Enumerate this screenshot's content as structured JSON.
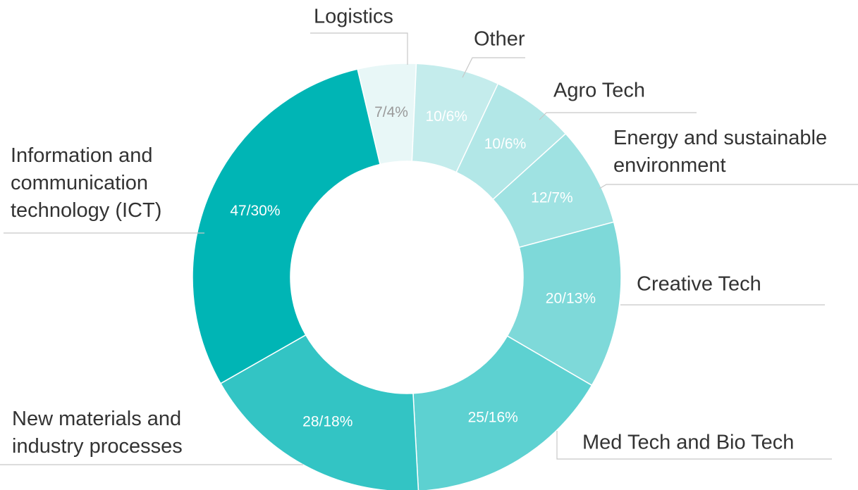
{
  "chart_data": {
    "type": "donut",
    "categories": [
      "Logistics",
      "Other",
      "Agro Tech",
      "Energy and sustainable environment",
      "Creative Tech",
      "Med Tech and Bio Tech",
      "New materials and industry processes",
      "Information and communication technology (ICT)"
    ],
    "values": [
      7,
      10,
      10,
      12,
      20,
      25,
      28,
      47
    ],
    "value_labels": [
      "7/4%",
      "10/6%",
      "10/6%",
      "12/7%",
      "20/13%",
      "25/16%",
      "28/18%",
      "47/30%"
    ],
    "colors": [
      "#e8f7f7",
      "#c4ecec",
      "#b2e7e7",
      "#9fe2e2",
      "#7ed9d9",
      "#5dd1d1",
      "#33c4c4",
      "#00b5b5"
    ]
  }
}
